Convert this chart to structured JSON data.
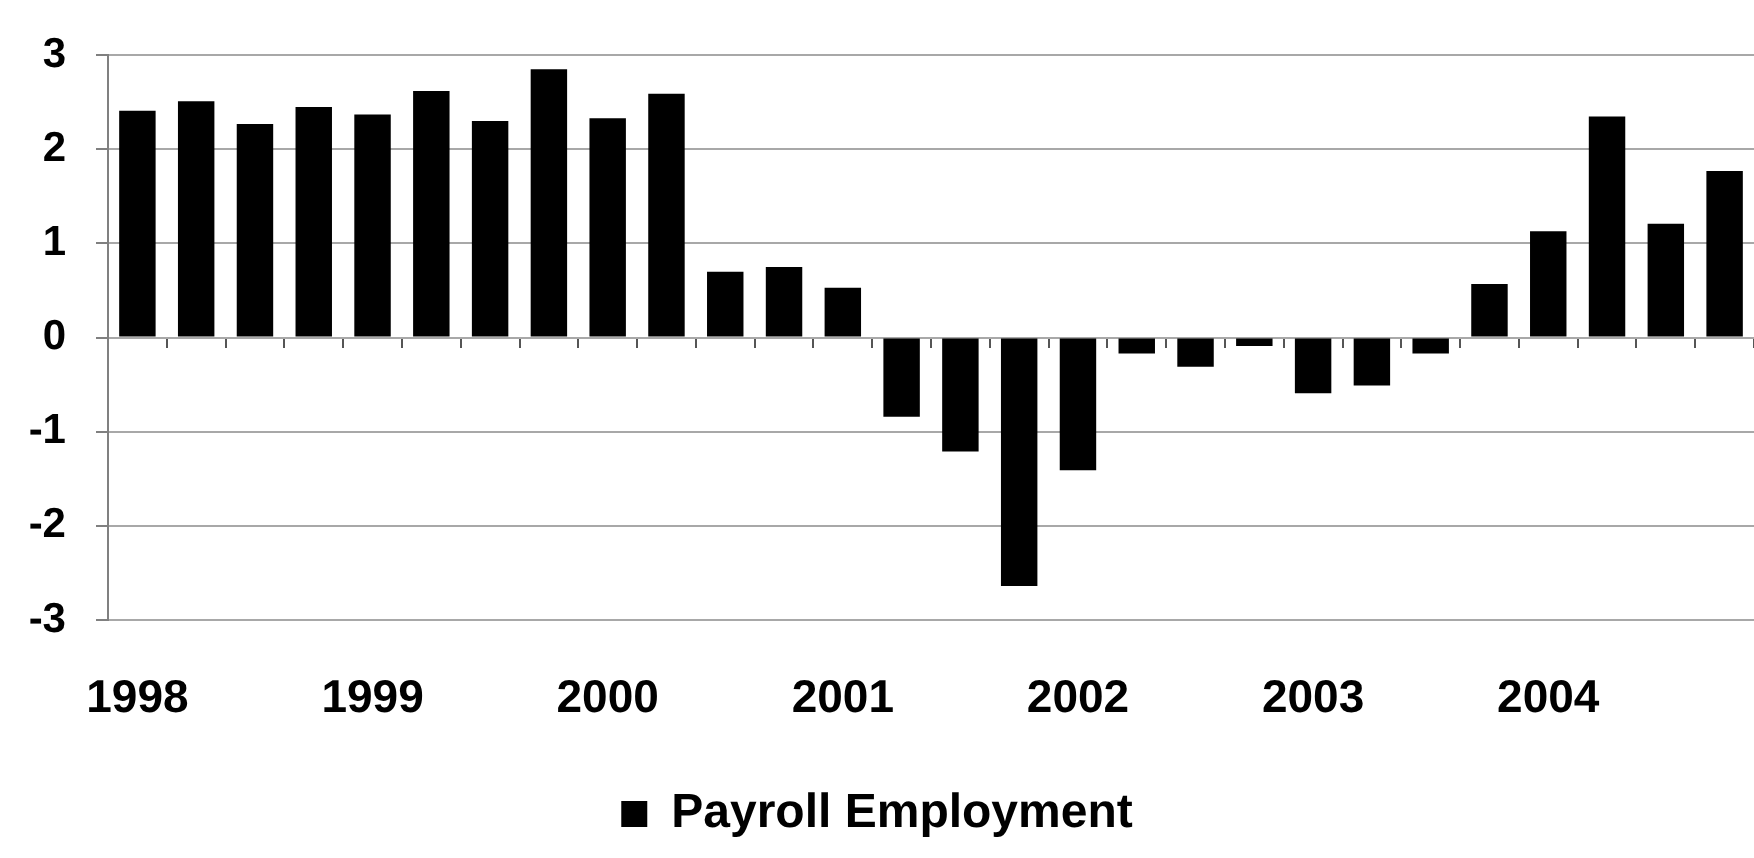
{
  "chart_data": {
    "type": "bar",
    "categories": [
      "1998",
      null,
      null,
      null,
      "1999",
      null,
      null,
      null,
      "2000",
      null,
      null,
      null,
      "2001",
      null,
      null,
      null,
      "2002",
      null,
      null,
      null,
      "2003",
      null,
      null,
      null,
      "2004",
      null,
      null,
      null
    ],
    "series": [
      {
        "name": "Payroll Employment",
        "color": "#000000",
        "values": [
          2.41,
          2.51,
          2.27,
          2.45,
          2.37,
          2.62,
          2.3,
          2.85,
          2.33,
          2.59,
          0.7,
          0.75,
          0.53,
          -0.84,
          -1.21,
          -2.64,
          -1.41,
          -0.17,
          -0.31,
          -0.09,
          -0.59,
          -0.51,
          -0.17,
          0.57,
          1.13,
          2.35,
          1.21,
          1.77
        ]
      }
    ],
    "ylim": [
      -3,
      3
    ],
    "yticks": [
      -3,
      -2,
      -1,
      0,
      1,
      2,
      3
    ],
    "grid": "y",
    "legend": "bottom"
  }
}
